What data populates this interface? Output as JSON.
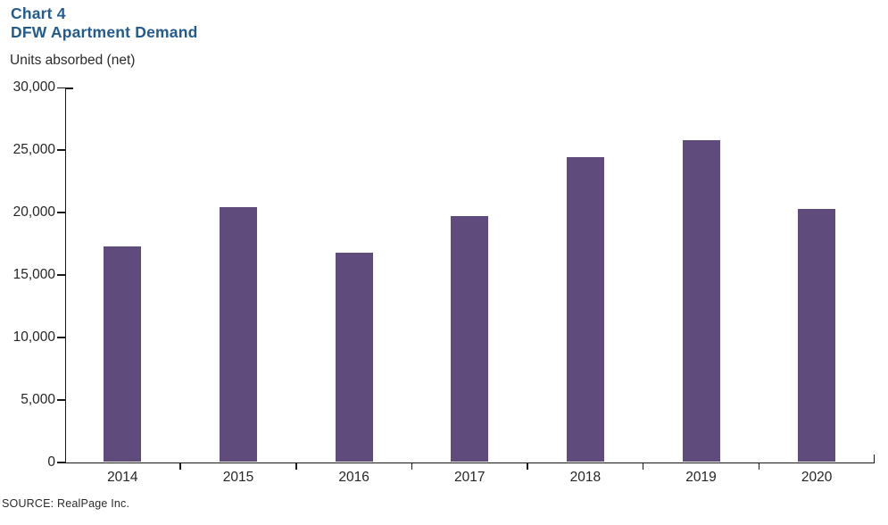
{
  "title": {
    "line1": "Chart 4",
    "line2": "DFW Apartment Demand"
  },
  "unit_label": "Units absorbed (net)",
  "source": "SOURCE: RealPage  Inc.",
  "colors": {
    "bar": "#604B7D",
    "title": "#245B8F",
    "axis": "#1a1a1a",
    "text": "#262626"
  },
  "chart_data": {
    "type": "bar",
    "title": "DFW Apartment Demand",
    "subtitle": "Chart 4",
    "ylabel": "Units absorbed (net)",
    "xlabel": "",
    "categories": [
      "2014",
      "2015",
      "2016",
      "2017",
      "2018",
      "2019",
      "2020"
    ],
    "values": [
      17300,
      20400,
      16800,
      19700,
      24400,
      25800,
      20300
    ],
    "ylim": [
      0,
      30000
    ],
    "ytick_step": 5000,
    "ytick_labels": [
      "0",
      "5,000",
      "10,000",
      "15,000",
      "20,000",
      "25,000",
      "30,000"
    ],
    "grid": false,
    "legend_position": "none",
    "source": "SOURCE: RealPage Inc."
  }
}
